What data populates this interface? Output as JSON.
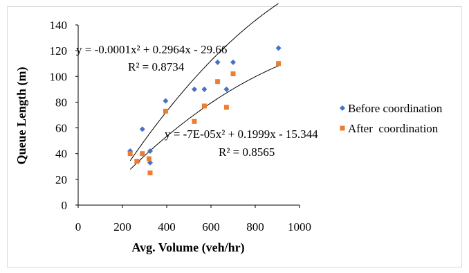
{
  "chart_data": {
    "type": "scatter",
    "title": "",
    "xlabel": "Avg. Volume (veh/hr)",
    "ylabel": "Queue Length (m)",
    "xlim": [
      0,
      1000
    ],
    "ylim": [
      0,
      140
    ],
    "x_ticks": [
      0,
      200,
      400,
      600,
      800,
      1000
    ],
    "y_ticks": [
      0,
      20,
      40,
      60,
      80,
      100,
      120,
      140
    ],
    "grid": false,
    "legend_position": "right",
    "series": [
      {
        "name": "Before coordination",
        "marker": "diamond",
        "color": "#4472C4",
        "points": [
          {
            "x": 235,
            "y": 42
          },
          {
            "x": 270,
            "y": 34
          },
          {
            "x": 290,
            "y": 59
          },
          {
            "x": 325,
            "y": 33
          },
          {
            "x": 325,
            "y": 42
          },
          {
            "x": 395,
            "y": 81
          },
          {
            "x": 525,
            "y": 90
          },
          {
            "x": 570,
            "y": 90
          },
          {
            "x": 630,
            "y": 111
          },
          {
            "x": 670,
            "y": 90
          },
          {
            "x": 700,
            "y": 111
          },
          {
            "x": 905,
            "y": 122
          }
        ],
        "trendline": {
          "type": "poly2",
          "a": -0.0001,
          "b": 0.2964,
          "c": -29.66,
          "x_range": [
            235,
            905
          ],
          "equation": "y = -0.0001x² + 0.2964x - 29.66",
          "r2_label": "R² = 0.8734"
        }
      },
      {
        "name": "After  coordination",
        "marker": "square",
        "color": "#ED7D31",
        "points": [
          {
            "x": 235,
            "y": 40
          },
          {
            "x": 265,
            "y": 34
          },
          {
            "x": 290,
            "y": 40
          },
          {
            "x": 320,
            "y": 36
          },
          {
            "x": 325,
            "y": 25
          },
          {
            "x": 395,
            "y": 73
          },
          {
            "x": 525,
            "y": 65
          },
          {
            "x": 570,
            "y": 77
          },
          {
            "x": 630,
            "y": 96
          },
          {
            "x": 670,
            "y": 76
          },
          {
            "x": 700,
            "y": 102
          },
          {
            "x": 905,
            "y": 110
          }
        ],
        "trendline": {
          "type": "poly2",
          "a": -7e-05,
          "b": 0.1999,
          "c": -15.344,
          "x_range": [
            235,
            905
          ],
          "equation": "y = -7E-05x² + 0.1999x - 15.344",
          "r2_label": "R² = 0.8565"
        }
      }
    ]
  }
}
